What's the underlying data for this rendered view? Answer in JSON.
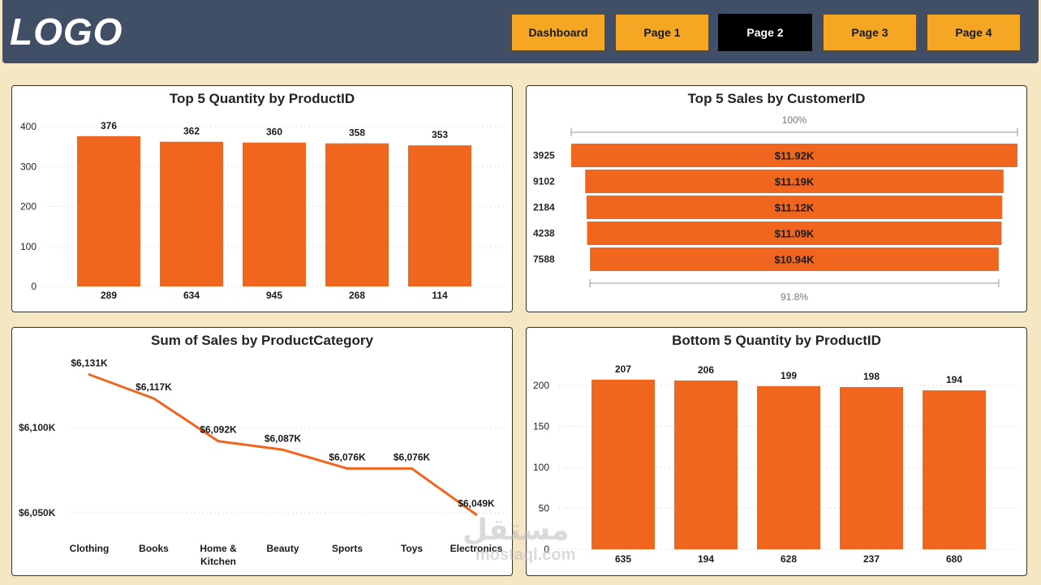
{
  "header": {
    "logo": "LOGO",
    "nav": [
      {
        "label": "Dashboard",
        "active": false
      },
      {
        "label": "Page 1",
        "active": false
      },
      {
        "label": "Page 2",
        "active": true
      },
      {
        "label": "Page 3",
        "active": false
      },
      {
        "label": "Page 4",
        "active": false
      }
    ]
  },
  "colors": {
    "bar": "#f0661e",
    "header_bg": "#404e66",
    "page_bg": "#f5e6c4",
    "nav_button": "#f5a623",
    "nav_active": "#000000"
  },
  "watermark": {
    "arabic": "مستقل",
    "latin": "mostaql.com"
  },
  "chart_data": [
    {
      "id": "top5-qty",
      "type": "bar",
      "title": "Top 5 Quantity by ProductID",
      "categories": [
        "289",
        "634",
        "945",
        "268",
        "114"
      ],
      "values": [
        376,
        362,
        360,
        358,
        353
      ],
      "yticks": [
        0,
        100,
        200,
        300,
        400
      ],
      "ylim": [
        0,
        400
      ],
      "grid": true
    },
    {
      "id": "top5-sales",
      "type": "funnel",
      "title": "Top 5 Sales by CustomerID",
      "categories": [
        "3925",
        "9102",
        "2184",
        "4238",
        "7588"
      ],
      "values": [
        11.92,
        11.19,
        11.12,
        11.09,
        10.94
      ],
      "labels": [
        "$11.92K",
        "$11.19K",
        "$11.12K",
        "$11.09K",
        "$10.94K"
      ],
      "top_label": "100%",
      "bottom_label": "91.8%"
    },
    {
      "id": "sales-by-category",
      "type": "line",
      "title": "Sum of Sales by ProductCategory",
      "categories": [
        "Clothing",
        "Books",
        "Home & Kitchen",
        "Beauty",
        "Sports",
        "Toys",
        "Electronics"
      ],
      "values": [
        6131,
        6117,
        6092,
        6087,
        6076,
        6076,
        6049
      ],
      "labels": [
        "$6,131K",
        "$6,117K",
        "$6,092K",
        "$6,087K",
        "$6,076K",
        "$6,076K",
        "$6,049K"
      ],
      "yticks": [
        6050,
        6100
      ],
      "ytick_labels": [
        "$6,050K",
        "$6,100K"
      ],
      "ylim": [
        6042,
        6137
      ],
      "grid": true
    },
    {
      "id": "bottom5-qty",
      "type": "bar",
      "title": "Bottom 5 Quantity by ProductID",
      "categories": [
        "635",
        "194",
        "628",
        "237",
        "680"
      ],
      "values": [
        207,
        206,
        199,
        198,
        194
      ],
      "yticks": [
        0,
        50,
        100,
        150,
        200
      ],
      "ylim": [
        0,
        200
      ],
      "grid": true
    }
  ]
}
